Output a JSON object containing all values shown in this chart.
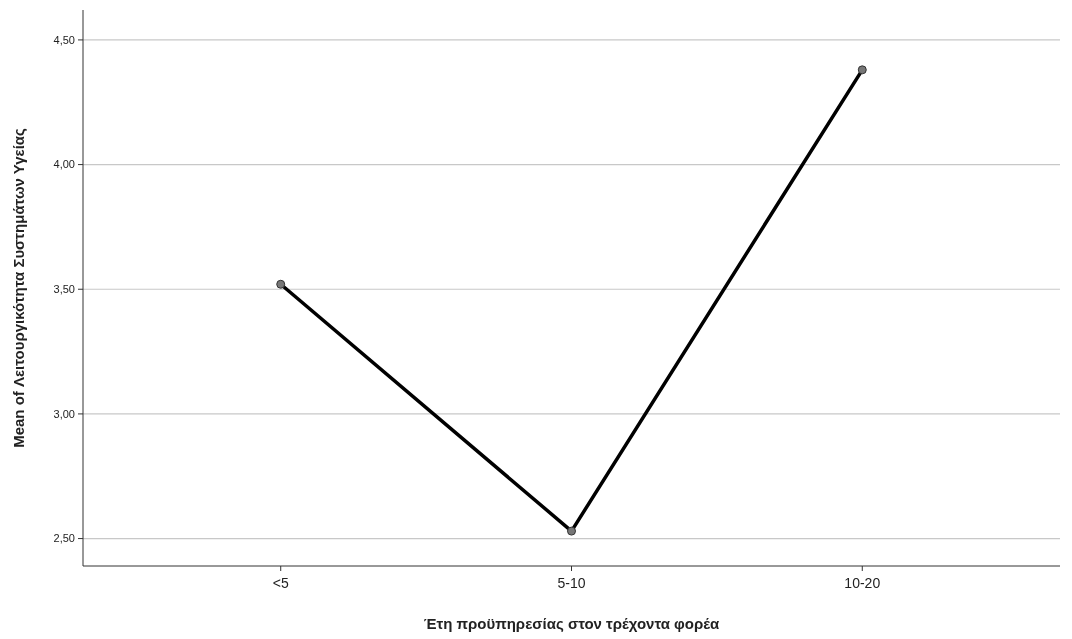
{
  "chart_data": {
    "type": "line",
    "xlabel": "Έτη προϋπηρεσίας στον τρέχοντα φορέα",
    "ylabel": "Mean of Λειτουργικότητα Συστημάτων Υγείας",
    "categories": [
      "<5",
      "5-10",
      "10-20"
    ],
    "series": [
      {
        "color": "#000000",
        "values": [
          3.52,
          2.53,
          4.38
        ]
      }
    ],
    "ylim": [
      2.39,
      4.62
    ],
    "yticks": [
      {
        "value": 2.5,
        "label": "2,50"
      },
      {
        "value": 3,
        "label": "3,00"
      },
      {
        "value": 3.5,
        "label": "3,50"
      },
      {
        "value": 4,
        "label": "4,00"
      },
      {
        "value": 4.5,
        "label": "4,50"
      }
    ],
    "grid": "y",
    "marker": "circle",
    "line_style": "solid"
  }
}
